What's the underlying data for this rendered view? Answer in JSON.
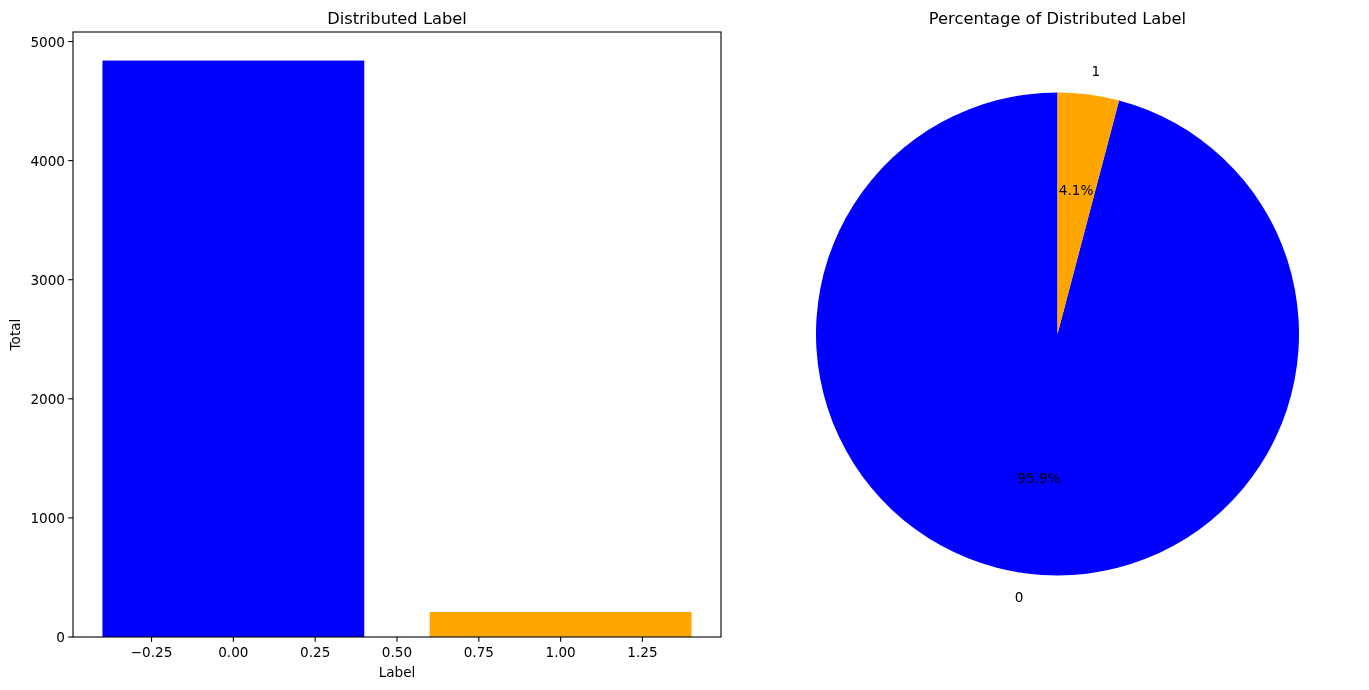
{
  "chart_data": [
    {
      "type": "bar",
      "title": "Distributed Label",
      "xlabel": "Label",
      "ylabel": "Total",
      "x": [
        0,
        1
      ],
      "values": [
        4840,
        210
      ],
      "colors": [
        "#0000ff",
        "#ffa500"
      ],
      "xlim": [
        -0.49,
        1.49
      ],
      "xticks": [
        {
          "value": -0.25,
          "label": "−0.25"
        },
        {
          "value": 0,
          "label": "0.00"
        },
        {
          "value": 0.25,
          "label": "0.25"
        },
        {
          "value": 0.5,
          "label": "0.50"
        },
        {
          "value": 0.75,
          "label": "0.75"
        },
        {
          "value": 1,
          "label": "1.00"
        },
        {
          "value": 1.25,
          "label": "1.25"
        }
      ],
      "ylim": [
        0,
        5080
      ],
      "yticks": [
        0,
        1000,
        2000,
        3000,
        4000,
        5000
      ]
    },
    {
      "type": "pie",
      "title": "Percentage of Distributed Label",
      "categories": [
        "0",
        "1"
      ],
      "values": [
        95.9,
        4.1
      ],
      "colors": [
        "#0000ff",
        "#ffa500"
      ],
      "value_labels": [
        "95.9%",
        "4.1%"
      ]
    }
  ]
}
